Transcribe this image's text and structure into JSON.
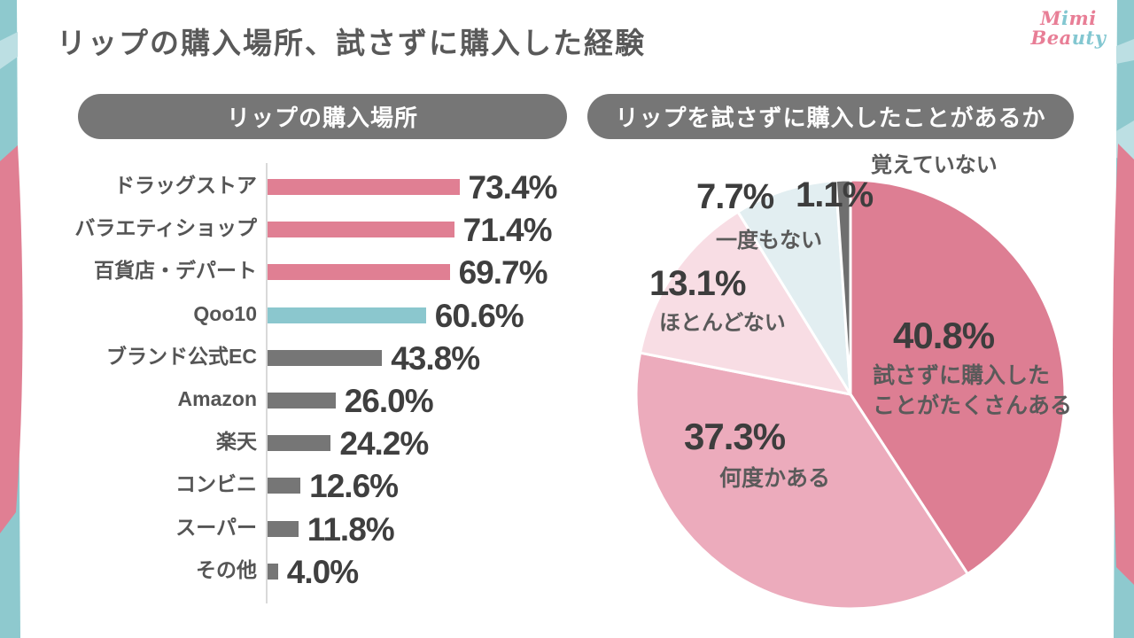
{
  "page": {
    "title": "リップの購入場所、試さずに購入した経験"
  },
  "logo": {
    "line1": [
      {
        "t": "M",
        "c": "#e87e96"
      },
      {
        "t": "i",
        "c": "#83c7d1"
      },
      {
        "t": "m",
        "c": "#e87e96"
      },
      {
        "t": "i",
        "c": "#e87e96"
      }
    ],
    "line2": [
      {
        "t": "B",
        "c": "#e87e96"
      },
      {
        "t": "e",
        "c": "#e87e96"
      },
      {
        "t": "a",
        "c": "#e87e96"
      },
      {
        "t": "u",
        "c": "#83c7d1"
      },
      {
        "t": "t",
        "c": "#83c7d1"
      },
      {
        "t": "y",
        "c": "#83c7d1"
      }
    ]
  },
  "left_panel": {
    "header": "リップの購入場所"
  },
  "right_panel": {
    "header": "リップを試さずに購入したことがあるか"
  },
  "palette": {
    "accent_pink": "#e07f93",
    "accent_teal": "#8bc7ce",
    "neutral_gray": "#767676",
    "text_dark": "#3f3f3f",
    "text_mid": "#555555",
    "edge_teal": "#8ec9ce",
    "edge_light_teal": "#bcdfe3",
    "edge_pink": "#e07f93"
  },
  "chart_data": [
    {
      "type": "bar",
      "orientation": "horizontal",
      "title": "リップの購入場所",
      "categories": [
        "ドラッグストア",
        "バラエティショップ",
        "百貨店・デパート",
        "Qoo10",
        "ブランド公式EC",
        "Amazon",
        "楽天",
        "コンビニ",
        "スーパー",
        "その他"
      ],
      "values": [
        73.4,
        71.4,
        69.7,
        60.6,
        43.8,
        26.0,
        24.2,
        12.6,
        11.8,
        4.0
      ],
      "value_labels": [
        "73.4%",
        "71.4%",
        "69.7%",
        "60.6%",
        "43.8%",
        "26.0%",
        "24.2%",
        "12.6%",
        "11.8%",
        "4.0%"
      ],
      "bar_colors": [
        "#e07f93",
        "#e07f93",
        "#e07f93",
        "#8bc7ce",
        "#767676",
        "#767676",
        "#767676",
        "#767676",
        "#767676",
        "#767676"
      ],
      "xlim": [
        0,
        100
      ],
      "grid": false,
      "legend": false
    },
    {
      "type": "pie",
      "title": "リップを試さずに購入したことがあるか",
      "start_angle_deg": 0,
      "direction": "clockwise",
      "slices": [
        {
          "label": "試さずに購入した\nことがたくさんある",
          "value": 40.8,
          "display": "40.8%",
          "color": "#dd7e93"
        },
        {
          "label": "何度かある",
          "value": 37.3,
          "display": "37.3%",
          "color": "#ecabbc"
        },
        {
          "label": "ほとんどない",
          "value": 13.1,
          "display": "13.1%",
          "color": "#f8dde4"
        },
        {
          "label": "一度もない",
          "value": 7.7,
          "display": "7.7%",
          "color": "#e2eef1"
        },
        {
          "label": "覚えていない",
          "value": 1.1,
          "display": "1.1%",
          "color": "#6f6f6f"
        }
      ]
    }
  ]
}
